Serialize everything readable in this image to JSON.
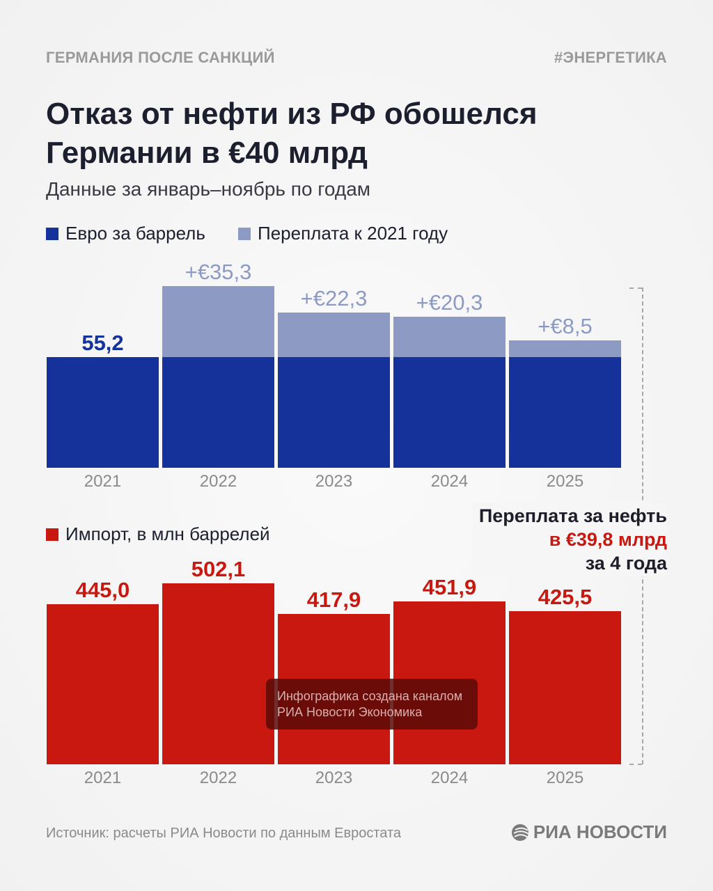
{
  "header": {
    "kicker_left": "ГЕРМАНИЯ ПОСЛЕ САНКЦИЙ",
    "kicker_right": "#ЭНЕРГЕТИКА",
    "title_line1": "Отказ от нефти из РФ обошелся",
    "title_line2": "Германии в €40 млрд",
    "subtitle": "Данные за январь–ноябрь по годам"
  },
  "chart_data": [
    {
      "type": "bar",
      "stacked": true,
      "title": "Евро за баррель",
      "categories": [
        "2021",
        "2022",
        "2023",
        "2024",
        "2025"
      ],
      "series": [
        {
          "name": "Евро за баррель",
          "values": [
            55.2,
            55.2,
            55.2,
            55.2,
            55.2
          ],
          "color": "#14329a"
        },
        {
          "name": "Переплата к 2021 году",
          "values": [
            0,
            35.3,
            22.3,
            20.3,
            8.5
          ],
          "color": "#8d9ac4"
        }
      ],
      "labels": [
        "55,2",
        "+€35,3",
        "+€22,3",
        "+€20,3",
        "+€8,5"
      ],
      "legend_position": "top-left"
    },
    {
      "type": "bar",
      "title": "Импорт, в млн баррелей",
      "categories": [
        "2021",
        "2022",
        "2023",
        "2024",
        "2025"
      ],
      "series": [
        {
          "name": "Импорт, в млн баррелей",
          "values": [
            445.0,
            502.1,
            417.9,
            451.9,
            425.5
          ],
          "color": "#c8180f"
        }
      ],
      "labels": [
        "445,0",
        "502,1",
        "417,9",
        "451,9",
        "425,5"
      ],
      "legend_position": "top-left"
    }
  ],
  "note": {
    "line1": "Переплата за нефть",
    "line2": "в €39,8 млрд",
    "line3": "за 4 года"
  },
  "watermark": {
    "line1": "Инфографика создана каналом",
    "line2": "РИА Новости Экономика"
  },
  "footer": {
    "source": "Источник: расчеты РИА Новости по данным Евростата",
    "logo": "РИА НОВОСТИ"
  },
  "colors": {
    "base": "#14329a",
    "overpay": "#8d9ac4",
    "import": "#c8180f",
    "accent_red": "#c8180f"
  }
}
